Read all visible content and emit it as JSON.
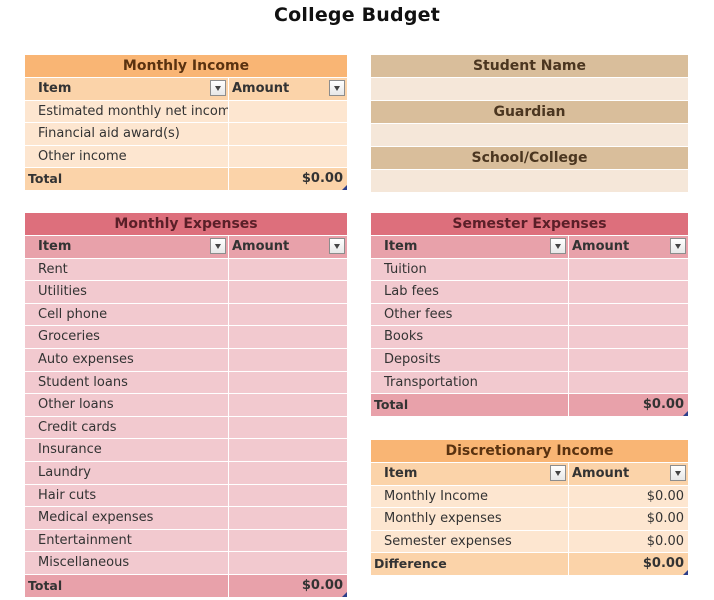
{
  "title": "College Budget",
  "monthly_income": {
    "header": "Monthly Income",
    "col_item": "Item",
    "col_amount": "Amount",
    "rows": [
      {
        "item": "Estimated monthly net income",
        "amount": ""
      },
      {
        "item": "Financial aid award(s)",
        "amount": ""
      },
      {
        "item": "Other income",
        "amount": ""
      }
    ],
    "total_label": "Total",
    "total_value": "$0.00"
  },
  "student_info": {
    "student_name_label": "Student Name",
    "student_name_value": "",
    "guardian_label": "Guardian",
    "guardian_value": "",
    "school_label": "School/College",
    "school_value": ""
  },
  "monthly_expenses": {
    "header": "Monthly Expenses",
    "col_item": "Item",
    "col_amount": "Amount",
    "rows": [
      {
        "item": "Rent",
        "amount": ""
      },
      {
        "item": "Utilities",
        "amount": ""
      },
      {
        "item": "Cell phone",
        "amount": ""
      },
      {
        "item": "Groceries",
        "amount": ""
      },
      {
        "item": "Auto expenses",
        "amount": ""
      },
      {
        "item": "Student loans",
        "amount": ""
      },
      {
        "item": "Other loans",
        "amount": ""
      },
      {
        "item": "Credit cards",
        "amount": ""
      },
      {
        "item": "Insurance",
        "amount": ""
      },
      {
        "item": "Laundry",
        "amount": ""
      },
      {
        "item": "Hair cuts",
        "amount": ""
      },
      {
        "item": "Medical expenses",
        "amount": ""
      },
      {
        "item": "Entertainment",
        "amount": ""
      },
      {
        "item": "Miscellaneous",
        "amount": ""
      }
    ],
    "total_label": "Total",
    "total_value": "$0.00"
  },
  "semester_expenses": {
    "header": "Semester Expenses",
    "col_item": "Item",
    "col_amount": "Amount",
    "rows": [
      {
        "item": "Tuition",
        "amount": ""
      },
      {
        "item": "Lab fees",
        "amount": ""
      },
      {
        "item": "Other fees",
        "amount": ""
      },
      {
        "item": "Books",
        "amount": ""
      },
      {
        "item": "Deposits",
        "amount": ""
      },
      {
        "item": "Transportation",
        "amount": ""
      }
    ],
    "total_label": "Total",
    "total_value": "$0.00"
  },
  "discretionary_income": {
    "header": "Discretionary Income",
    "col_item": "Item",
    "col_amount": "Amount",
    "rows": [
      {
        "item": "Monthly Income",
        "amount": "$0.00"
      },
      {
        "item": "Monthly expenses",
        "amount": "$0.00"
      },
      {
        "item": "Semester expenses",
        "amount": "$0.00"
      }
    ],
    "total_label": "Difference",
    "total_value": "$0.00"
  },
  "colors": {
    "orange_header": "#f9b574",
    "orange_body": "#fde6d0",
    "pink_header": "#dd6f7c",
    "pink_body": "#f2c9cf",
    "tan_label": "#d9be9b",
    "tan_value": "#f5e7d9"
  }
}
